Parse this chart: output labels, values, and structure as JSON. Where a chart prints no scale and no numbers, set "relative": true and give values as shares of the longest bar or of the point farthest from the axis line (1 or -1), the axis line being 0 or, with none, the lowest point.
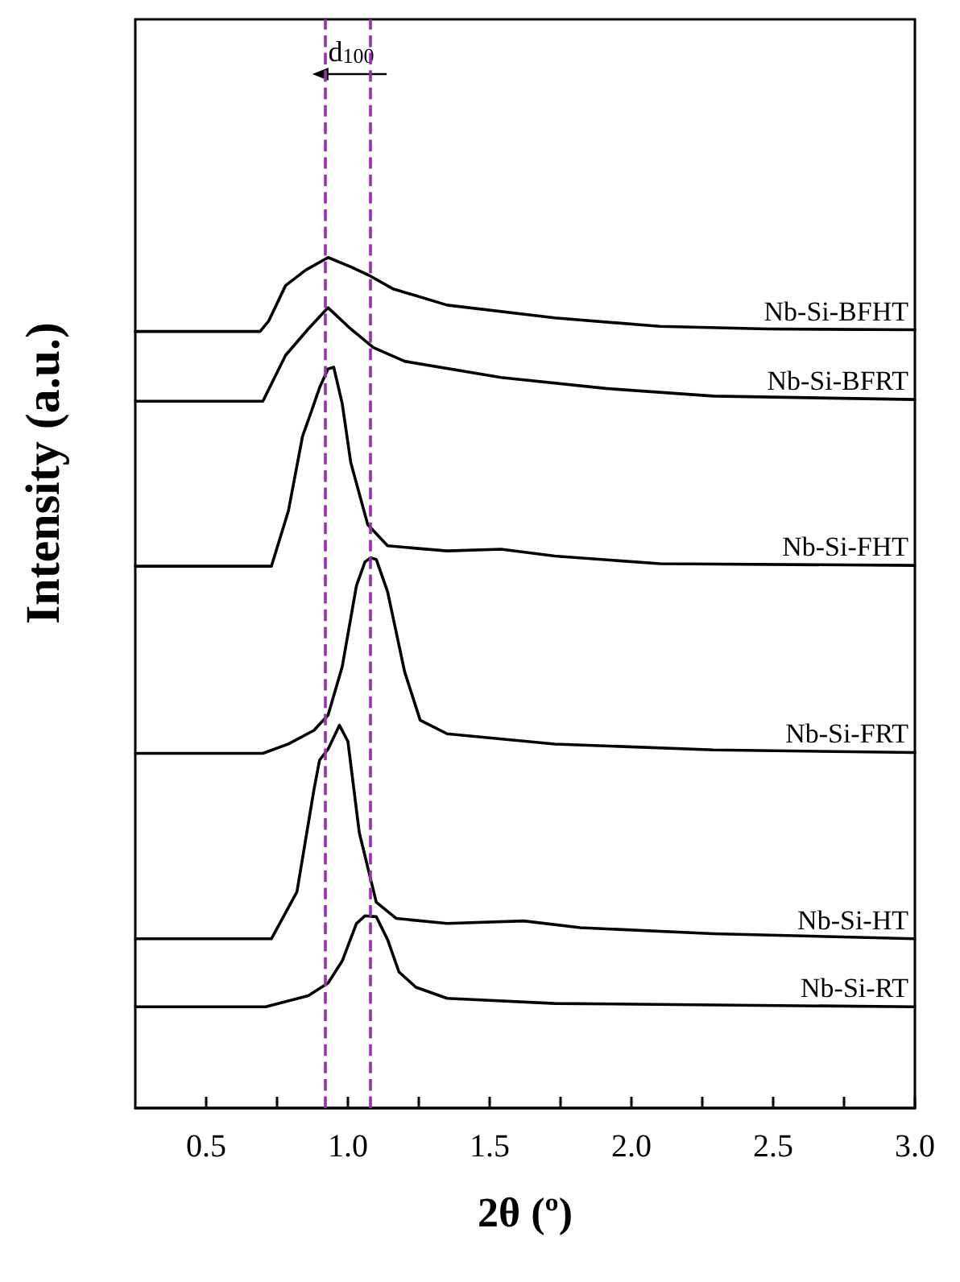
{
  "chart_data": {
    "type": "line",
    "relative": true,
    "xlabel": "2θ (º)",
    "ylabel": "Intensity (a.u.)",
    "xlim": [
      0.25,
      3.0
    ],
    "xticks": [
      0.5,
      {
        "value": 0.75,
        "label": null
      },
      {
        "value": 1.0,
        "label": "1.0"
      },
      {
        "value": 1.25,
        "label": null
      },
      1.5,
      {
        "value": 1.75,
        "label": null
      },
      {
        "value": 2.0,
        "label": "2.0"
      },
      {
        "value": 2.25,
        "label": null
      },
      2.5,
      {
        "value": 2.75,
        "label": null
      },
      {
        "value": 3.0,
        "label": "3.0"
      }
    ],
    "tick_labels": "x",
    "grid": false,
    "legend": false,
    "marker": "none",
    "line_style": "solid",
    "annotations": [
      "d$_{100}$"
    ],
    "ref_lines": [
      {
        "axis": "x",
        "value": 0.92,
        "color": "#9b2fae",
        "line_style": "dashed"
      },
      {
        "axis": "x",
        "value": 1.08,
        "color": "#9b2fae",
        "line_style": "dashed"
      }
    ],
    "series": [
      {
        "name": "Nb-Si-BFHT",
        "color": "#000000",
        "x": [
          0.25,
          0.69,
          0.72,
          0.78,
          0.85,
          0.93,
          1.01,
          1.08,
          1.16,
          1.35,
          1.73,
          2.1,
          2.48,
          3.0
        ],
        "values": [
          0.913,
          0.913,
          0.925,
          0.967,
          0.985,
          1.0,
          0.989,
          0.978,
          0.963,
          0.944,
          0.929,
          0.919,
          0.916,
          0.915
        ]
      },
      {
        "name": "Nb-Si-BFRT",
        "color": "#000000",
        "x": [
          0.25,
          0.7,
          0.78,
          0.86,
          0.93,
          1.01,
          1.09,
          1.2,
          1.54,
          1.91,
          2.29,
          3.0
        ],
        "values": [
          0.831,
          0.831,
          0.885,
          0.916,
          0.941,
          0.916,
          0.894,
          0.878,
          0.859,
          0.846,
          0.837,
          0.833
        ]
      },
      {
        "name": "Nb-Si-FHT",
        "color": "#000000",
        "x": [
          0.25,
          0.73,
          0.79,
          0.84,
          0.87,
          0.9,
          0.93,
          0.95,
          0.98,
          1.01,
          1.07,
          1.14,
          1.35,
          1.54,
          1.73,
          2.1,
          3.0
        ],
        "values": [
          0.637,
          0.637,
          0.702,
          0.79,
          0.818,
          0.847,
          0.869,
          0.871,
          0.828,
          0.759,
          0.686,
          0.661,
          0.655,
          0.657,
          0.649,
          0.64,
          0.638
        ]
      },
      {
        "name": "Nb-Si-FRT",
        "color": "#000000",
        "x": [
          0.25,
          0.7,
          0.79,
          0.88,
          0.93,
          0.98,
          1.03,
          1.06,
          1.08,
          1.1,
          1.14,
          1.2,
          1.255,
          1.35,
          1.73,
          2.29,
          3.0
        ],
        "values": [
          0.417,
          0.417,
          0.428,
          0.444,
          0.462,
          0.519,
          0.614,
          0.642,
          0.647,
          0.645,
          0.607,
          0.513,
          0.456,
          0.44,
          0.428,
          0.421,
          0.418
        ]
      },
      {
        "name": "Nb-Si-HT",
        "color": "#000000",
        "x": [
          0.25,
          0.73,
          0.82,
          0.88,
          0.9,
          0.93,
          0.97,
          1.0,
          1.04,
          1.1,
          1.17,
          1.35,
          1.62,
          1.82,
          2.29,
          3.0
        ],
        "values": [
          0.199,
          0.199,
          0.254,
          0.374,
          0.409,
          0.422,
          0.45,
          0.431,
          0.324,
          0.242,
          0.223,
          0.217,
          0.22,
          0.212,
          0.205,
          0.199
        ]
      },
      {
        "name": "Nb-Si-RT",
        "color": "#000000",
        "x": [
          0.25,
          0.71,
          0.86,
          0.93,
          0.98,
          1.03,
          1.06,
          1.1,
          1.14,
          1.18,
          1.24,
          1.35,
          1.73,
          3.0
        ],
        "values": [
          0.119,
          0.119,
          0.132,
          0.147,
          0.173,
          0.217,
          0.226,
          0.225,
          0.198,
          0.16,
          0.142,
          0.129,
          0.123,
          0.119
        ]
      }
    ]
  }
}
